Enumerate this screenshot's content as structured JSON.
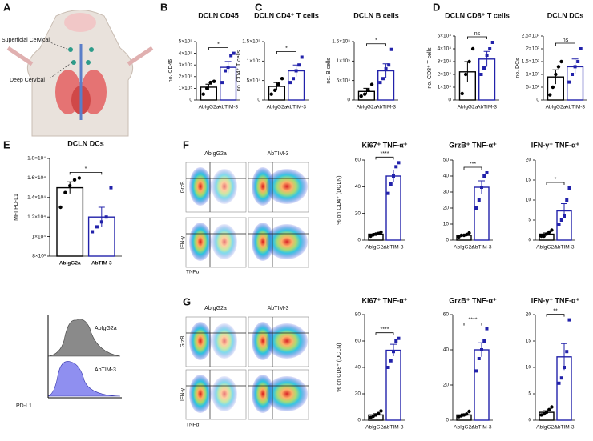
{
  "panel_letters": [
    "A",
    "B",
    "C",
    "D",
    "E",
    "F",
    "G"
  ],
  "illustration": {
    "superficial": "Superficial Cervical",
    "deep": "Deep Cervical"
  },
  "histogram": {
    "groups": [
      "AbIgG2a",
      "AbTIM-3"
    ],
    "x_label": "PD-L1"
  },
  "flow_f": {
    "columns": [
      "AbIgG2a",
      "AbTIM-3"
    ],
    "rows": [
      "GrzB",
      "IFN-γ"
    ],
    "x_label": "TNFα"
  },
  "flow_g": {
    "columns": [
      "AbIgG2a",
      "AbTIM-3"
    ],
    "rows": [
      "GrzB",
      "IFN-γ"
    ],
    "x_label": "TNFα"
  },
  "chart_data": [
    {
      "type": "bar",
      "title": "DCLN CD45",
      "ylabel": "no. CD45",
      "categories": [
        "AbIgG2a",
        "AbTIM-3"
      ],
      "colors": [
        "#000000",
        "#2222aa"
      ],
      "values": [
        110000,
        280000
      ],
      "errors": [
        25000,
        50000
      ],
      "points": [
        [
          50000,
          100000,
          150000,
          160000
        ],
        [
          150000,
          250000,
          280000,
          380000,
          400000
        ]
      ],
      "significance": "*",
      "ylim": [
        0,
        500000
      ],
      "yticks": [
        0,
        {
          "value": 100000,
          "label": "1×10⁵"
        },
        {
          "value": 200000,
          "label": "2×10⁵"
        },
        {
          "value": 300000,
          "label": "3×10⁵"
        },
        {
          "value": 400000,
          "label": "4×10⁵"
        },
        {
          "value": 500000,
          "label": "5×10⁵"
        }
      ]
    },
    {
      "type": "bar",
      "title": "DCLN CD4⁺ T cells",
      "ylabel": "no. CD4⁺ T cells",
      "categories": [
        "AbIgG2a",
        "AbTIM-3"
      ],
      "colors": [
        "#000000",
        "#2222aa"
      ],
      "values": [
        35000,
        75000
      ],
      "errors": [
        10000,
        15000
      ],
      "points": [
        [
          15000,
          25000,
          40000,
          55000
        ],
        [
          45000,
          55000,
          75000,
          90000,
          110000
        ]
      ],
      "significance": "*",
      "ylim": [
        0,
        150000
      ],
      "yticks": [
        0,
        {
          "value": 50000,
          "label": "5×10⁴"
        },
        {
          "value": 100000,
          "label": "1×10⁵"
        },
        {
          "value": 150000,
          "label": "1.5×10⁵"
        }
      ]
    },
    {
      "type": "bar",
      "title": "DCLN B cells",
      "ylabel": "no. B cells",
      "categories": [
        "AbIgG2a",
        "AbTIM-3"
      ],
      "colors": [
        "#000000",
        "#2222aa"
      ],
      "values": [
        22000,
        75000
      ],
      "errors": [
        8000,
        18000
      ],
      "points": [
        [
          10000,
          15000,
          25000,
          40000
        ],
        [
          45000,
          55000,
          80000,
          90000,
          130000
        ]
      ],
      "significance": "*",
      "ylim": [
        0,
        150000
      ],
      "yticks": [
        0,
        {
          "value": 50000,
          "label": "5×10⁴"
        },
        {
          "value": 100000,
          "label": "1×10⁵"
        },
        {
          "value": 150000,
          "label": "1.5×10⁵"
        }
      ]
    },
    {
      "type": "bar",
      "title": "DCLN CD8⁺ T cells",
      "ylabel": "no. CD8⁺ T cells",
      "categories": [
        "AbIgG2a",
        "AbTIM-3"
      ],
      "colors": [
        "#000000",
        "#2222aa"
      ],
      "values": [
        22000,
        32000
      ],
      "errors": [
        8000,
        6000
      ],
      "points": [
        [
          5000,
          20000,
          30000,
          40000
        ],
        [
          20000,
          25000,
          35000,
          40000,
          45000
        ]
      ],
      "significance": "ns",
      "ylim": [
        0,
        50000
      ],
      "yticks": [
        0,
        {
          "value": 10000,
          "label": "1×10⁴"
        },
        {
          "value": 20000,
          "label": "2×10⁴"
        },
        {
          "value": 30000,
          "label": "3×10⁴"
        },
        {
          "value": 40000,
          "label": "4×10⁴"
        },
        {
          "value": 50000,
          "label": "5×10⁴"
        }
      ]
    },
    {
      "type": "bar",
      "title": "DCLN DCs",
      "ylabel": "no. DCs",
      "categories": [
        "AbIgG2a",
        "AbTIM-3"
      ],
      "colors": [
        "#000000",
        "#2222aa"
      ],
      "values": [
        900,
        1300
      ],
      "errors": [
        280,
        300
      ],
      "points": [
        [
          200,
          500,
          1000,
          1300,
          1500
        ],
        [
          700,
          1000,
          1300,
          1500,
          2000
        ]
      ],
      "significance": "ns",
      "ylim": [
        0,
        2500
      ],
      "yticks": [
        0,
        {
          "value": 500,
          "label": "5×10²"
        },
        {
          "value": 1000,
          "label": "1×10³"
        },
        {
          "value": 1500,
          "label": "1.5×10³"
        },
        {
          "value": 2000,
          "label": "2×10³"
        },
        {
          "value": 2500,
          "label": "2.5×10³"
        }
      ]
    },
    {
      "type": "bar",
      "title": "DCLN DCs",
      "ylabel": "MFI PD-L1",
      "categories": [
        "AbIgG2a",
        "AbTIM-3"
      ],
      "colors": [
        "#000000",
        "#2222aa"
      ],
      "values": [
        15000,
        12000
      ],
      "errors": [
        600,
        1000
      ],
      "points": [
        [
          13000,
          14500,
          15200,
          15800,
          16000
        ],
        [
          10500,
          11000,
          11500,
          12000,
          15000
        ]
      ],
      "significance": "*",
      "ylim": [
        8000,
        18000
      ],
      "yticks": [
        {
          "value": 8000,
          "label": "8×10³"
        },
        {
          "value": 10000,
          "label": "1×10⁴"
        },
        {
          "value": 12000,
          "label": "1.2×10⁴"
        },
        {
          "value": 14000,
          "label": "1.4×10⁴"
        },
        {
          "value": 16000,
          "label": "1.6×10⁴"
        },
        {
          "value": 18000,
          "label": "1.8×10⁴"
        }
      ]
    },
    {
      "type": "bar",
      "title": "Ki67⁺ TNF-α⁺",
      "ylabel": "% on CD4⁺ (DCLN)",
      "categories": [
        "AbIgG2a",
        "AbTIM-3"
      ],
      "colors": [
        "#000000",
        "#2222aa"
      ],
      "values": [
        4.5,
        48
      ],
      "errors": [
        0.6,
        4.5
      ],
      "points": [
        [
          3,
          4,
          4.5,
          5,
          6
        ],
        [
          35,
          42,
          48,
          55,
          58
        ]
      ],
      "significance": "****",
      "ylim": [
        0,
        60
      ],
      "yticks": [
        0,
        20,
        40,
        60
      ]
    },
    {
      "type": "bar",
      "title": "GrzB⁺ TNF-α⁺",
      "categories": [
        "AbIgG2a",
        "AbTIM-3"
      ],
      "colors": [
        "#000000",
        "#2222aa"
      ],
      "values": [
        3,
        33
      ],
      "errors": [
        0.5,
        4
      ],
      "points": [
        [
          2,
          3,
          3,
          3.5,
          4.5
        ],
        [
          20,
          25,
          33,
          40,
          42
        ]
      ],
      "significance": "***",
      "ylim": [
        0,
        50
      ],
      "yticks": [
        0,
        10,
        20,
        30,
        40,
        50
      ]
    },
    {
      "type": "bar",
      "title": "IFN-γ⁺ TNF-α⁺",
      "categories": [
        "AbIgG2a",
        "AbTIM-3"
      ],
      "colors": [
        "#000000",
        "#2222aa"
      ],
      "values": [
        1.5,
        7.3
      ],
      "errors": [
        0.3,
        1.8
      ],
      "points": [
        [
          1,
          1,
          1.5,
          2,
          2.5
        ],
        [
          4,
          5,
          6,
          10,
          13
        ]
      ],
      "significance": "*",
      "ylim": [
        0,
        20
      ],
      "yticks": [
        0,
        5,
        10,
        15,
        20
      ]
    },
    {
      "type": "bar",
      "title": "Ki67⁺ TNF-α⁺",
      "ylabel": "% on CD8⁺ (DCLN)",
      "categories": [
        "AbIgG2a",
        "AbTIM-3"
      ],
      "colors": [
        "#000000",
        "#2222aa"
      ],
      "values": [
        4,
        53
      ],
      "errors": [
        0.9,
        4.5
      ],
      "points": [
        [
          2,
          3,
          4,
          5,
          7
        ],
        [
          40,
          45,
          52,
          60,
          62
        ]
      ],
      "significance": "****",
      "ylim": [
        0,
        80
      ],
      "yticks": [
        0,
        20,
        40,
        60,
        80
      ]
    },
    {
      "type": "bar",
      "title": "GrzB⁺ TNF-α⁺",
      "categories": [
        "AbIgG2a",
        "AbTIM-3"
      ],
      "colors": [
        "#000000",
        "#2222aa"
      ],
      "values": [
        3,
        40
      ],
      "errors": [
        0.6,
        4
      ],
      "points": [
        [
          2,
          2.5,
          3,
          3.5,
          5
        ],
        [
          28,
          35,
          40,
          45,
          52
        ]
      ],
      "significance": "****",
      "ylim": [
        0,
        60
      ],
      "yticks": [
        0,
        20,
        40,
        60
      ]
    },
    {
      "type": "bar",
      "title": "IFN-γ⁺ TNF-α⁺",
      "categories": [
        "AbIgG2a",
        "AbTIM-3"
      ],
      "colors": [
        "#000000",
        "#2222aa"
      ],
      "values": [
        1.5,
        12
      ],
      "errors": [
        0.3,
        2.5
      ],
      "points": [
        [
          1,
          1.2,
          1.5,
          2,
          2.5
        ],
        [
          7,
          8,
          10,
          13,
          19
        ]
      ],
      "significance": "**",
      "ylim": [
        0,
        20
      ],
      "yticks": [
        0,
        5,
        10,
        15,
        20
      ]
    }
  ]
}
